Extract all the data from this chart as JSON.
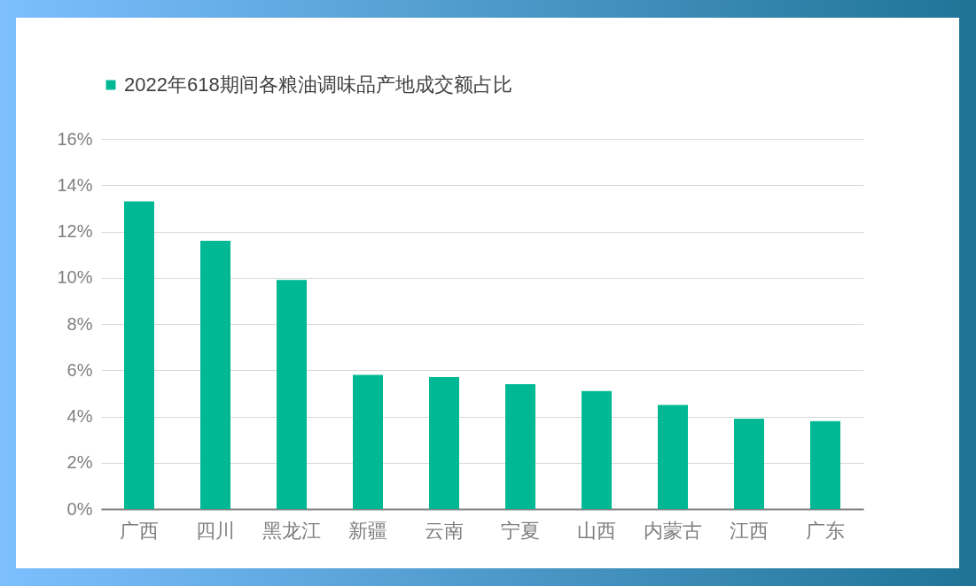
{
  "chart_data": {
    "type": "bar",
    "categories": [
      "广西",
      "四川",
      "黑龙江",
      "新疆",
      "云南",
      "宁夏",
      "山西",
      "内蒙古",
      "江西",
      "广东"
    ],
    "series": [
      {
        "name": "2022年618期间各粮油调味品产地成交额占比",
        "color": "#00b894",
        "values": [
          13.3,
          11.6,
          9.9,
          5.8,
          5.7,
          5.4,
          5.1,
          4.5,
          3.9,
          3.8
        ]
      }
    ],
    "ylim": [
      0,
      16
    ],
    "yticks": [
      {
        "value": 0,
        "label": "0%"
      },
      {
        "value": 2,
        "label": "2%"
      },
      {
        "value": 4,
        "label": "4%"
      },
      {
        "value": 6,
        "label": "6%"
      },
      {
        "value": 8,
        "label": "8%"
      },
      {
        "value": 10,
        "label": "10%"
      },
      {
        "value": 12,
        "label": "12%"
      },
      {
        "value": 14,
        "label": "14%"
      },
      {
        "value": 16,
        "label": "16%"
      }
    ],
    "grid": "y",
    "legend": "top"
  }
}
